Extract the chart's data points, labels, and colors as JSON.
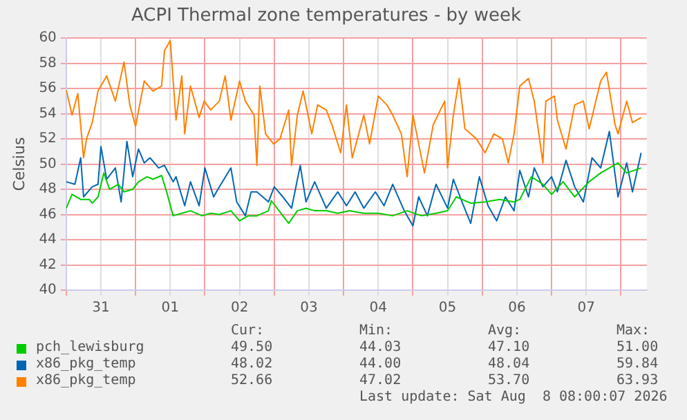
{
  "chart_data": {
    "type": "line",
    "title": "ACPI Thermal zone temperatures - by week",
    "ylabel": "Celsius",
    "xlim": [
      "2026-07-31T00:00",
      "2026-08-08T09:00"
    ],
    "xticks": [
      {
        "value": "2026-07-31T00:00",
        "label": null
      },
      {
        "value": "2026-07-31T12:00",
        "label": "31"
      },
      {
        "value": "2026-08-01T00:00",
        "label": null
      },
      {
        "value": "2026-08-01T12:00",
        "label": "01"
      },
      {
        "value": "2026-08-02T00:00",
        "label": null
      },
      {
        "value": "2026-08-02T12:00",
        "label": "02"
      },
      {
        "value": "2026-08-03T00:00",
        "label": null
      },
      {
        "value": "2026-08-03T12:00",
        "label": "03"
      },
      {
        "value": "2026-08-04T00:00",
        "label": null
      },
      {
        "value": "2026-08-04T12:00",
        "label": "04"
      },
      {
        "value": "2026-08-05T00:00",
        "label": null
      },
      {
        "value": "2026-08-05T12:00",
        "label": "05"
      },
      {
        "value": "2026-08-06T00:00",
        "label": null
      },
      {
        "value": "2026-08-06T12:00",
        "label": "06"
      },
      {
        "value": "2026-08-07T00:00",
        "label": null
      },
      {
        "value": "2026-08-07T12:00",
        "label": "07"
      },
      {
        "value": "2026-08-08T00:00",
        "label": null
      }
    ],
    "ylim": [
      40,
      60
    ],
    "yticks": [
      40,
      42,
      44,
      46,
      48,
      50,
      52,
      54,
      56,
      58,
      60
    ],
    "grid": true,
    "legend": "bottom",
    "marker": "none",
    "line_style": "solid",
    "series": [
      {
        "name": "pch_lewisburg",
        "color": "#00cc00",
        "x": [
          "2026-07-31T00:00",
          "2026-07-31T02:00",
          "2026-07-31T05:00",
          "2026-07-31T08:00",
          "2026-07-31T09:00",
          "2026-07-31T11:00",
          "2026-07-31T13:00",
          "2026-07-31T15:00",
          "2026-07-31T18:00",
          "2026-07-31T20:00",
          "2026-07-31T23:00",
          "2026-08-01T01:00",
          "2026-08-01T04:00",
          "2026-08-01T06:00",
          "2026-08-01T09:00",
          "2026-08-01T11:00",
          "2026-08-01T13:00",
          "2026-08-01T16:00",
          "2026-08-01T19:00",
          "2026-08-01T23:00",
          "2026-08-02T02:00",
          "2026-08-02T05:00",
          "2026-08-02T09:00",
          "2026-08-02T12:00",
          "2026-08-02T15:00",
          "2026-08-02T18:00",
          "2026-08-02T22:00",
          "2026-08-02T23:00",
          "2026-08-03T03:00",
          "2026-08-03T05:00",
          "2026-08-03T08:00",
          "2026-08-03T11:00",
          "2026-08-03T14:00",
          "2026-08-03T18:00",
          "2026-08-03T22:00",
          "2026-08-04T02:00",
          "2026-08-04T07:00",
          "2026-08-04T12:00",
          "2026-08-04T17:00",
          "2026-08-04T22:00",
          "2026-08-05T03:00",
          "2026-08-05T08:00",
          "2026-08-05T12:00",
          "2026-08-05T15:00",
          "2026-08-05T20:00",
          "2026-08-06T01:00",
          "2026-08-06T06:00",
          "2026-08-06T11:00",
          "2026-08-06T13:00",
          "2026-08-06T17:00",
          "2026-08-06T21:00",
          "2026-08-07T00:00",
          "2026-08-07T04:00",
          "2026-08-07T08:00",
          "2026-08-07T13:00",
          "2026-08-07T17:00",
          "2026-08-07T20:00",
          "2026-08-07T23:00",
          "2026-08-08T02:00",
          "2026-08-08T07:00"
        ],
        "values": [
          46.5,
          47.6,
          47.2,
          47.2,
          46.9,
          47.4,
          49.3,
          48.0,
          48.4,
          47.8,
          48.0,
          48.6,
          49.0,
          48.8,
          49.1,
          47.6,
          45.9,
          46.1,
          46.3,
          45.9,
          46.1,
          46.0,
          46.3,
          45.5,
          45.9,
          45.9,
          46.3,
          47.1,
          45.9,
          45.3,
          46.3,
          46.5,
          46.3,
          46.3,
          46.1,
          46.3,
          46.1,
          46.1,
          45.9,
          46.3,
          45.9,
          46.1,
          46.3,
          47.4,
          46.9,
          47.0,
          47.2,
          47.0,
          47.2,
          49.0,
          48.4,
          47.6,
          48.6,
          47.4,
          48.6,
          49.3,
          49.7,
          50.1,
          49.3,
          49.7
        ]
      },
      {
        "name": "x86_pkg_temp",
        "color": "#0066b3",
        "x": [
          "2026-07-31T00:00",
          "2026-07-31T03:00",
          "2026-07-31T05:00",
          "2026-07-31T06:00",
          "2026-07-31T09:00",
          "2026-07-31T11:00",
          "2026-07-31T12:00",
          "2026-07-31T14:00",
          "2026-07-31T17:00",
          "2026-07-31T19:00",
          "2026-07-31T21:00",
          "2026-07-31T23:00",
          "2026-08-01T01:00",
          "2026-08-01T03:00",
          "2026-08-01T05:00",
          "2026-08-01T08:00",
          "2026-08-01T10:00",
          "2026-08-01T13:00",
          "2026-08-01T14:00",
          "2026-08-01T17:00",
          "2026-08-01T19:00",
          "2026-08-01T22:00",
          "2026-08-02T00:00",
          "2026-08-02T03:00",
          "2026-08-02T05:00",
          "2026-08-02T09:00",
          "2026-08-02T11:00",
          "2026-08-02T14:00",
          "2026-08-02T16:00",
          "2026-08-02T18:00",
          "2026-08-02T22:00",
          "2026-08-03T00:00",
          "2026-08-03T03:00",
          "2026-08-03T06:00",
          "2026-08-03T09:00",
          "2026-08-03T11:00",
          "2026-08-03T14:00",
          "2026-08-03T18:00",
          "2026-08-03T22:00",
          "2026-08-04T01:00",
          "2026-08-04T04:00",
          "2026-08-04T07:00",
          "2026-08-04T11:00",
          "2026-08-04T14:00",
          "2026-08-04T17:00",
          "2026-08-04T21:00",
          "2026-08-05T00:00",
          "2026-08-05T02:00",
          "2026-08-05T05:00",
          "2026-08-05T08:00",
          "2026-08-05T12:00",
          "2026-08-05T14:00",
          "2026-08-05T17:00",
          "2026-08-05T20:00",
          "2026-08-05T23:00",
          "2026-08-06T02:00",
          "2026-08-06T05:00",
          "2026-08-06T08:00",
          "2026-08-06T11:00",
          "2026-08-06T13:00",
          "2026-08-06T16:00",
          "2026-08-06T18:00",
          "2026-08-06T21:00",
          "2026-08-07T00:00",
          "2026-08-07T02:00",
          "2026-08-07T05:00",
          "2026-08-07T08:00",
          "2026-08-07T11:00",
          "2026-08-07T14:00",
          "2026-08-07T17:00",
          "2026-08-07T20:00",
          "2026-08-07T23:00",
          "2026-08-08T02:00",
          "2026-08-08T04:00",
          "2026-08-08T07:00"
        ],
        "values": [
          48.6,
          48.4,
          50.5,
          47.4,
          48.2,
          48.4,
          51.4,
          48.8,
          49.7,
          47.0,
          51.8,
          49.0,
          51.2,
          50.1,
          50.5,
          49.7,
          49.9,
          48.6,
          49.0,
          46.7,
          48.6,
          46.7,
          49.7,
          47.4,
          48.2,
          49.7,
          47.0,
          45.9,
          47.8,
          47.8,
          47.0,
          48.2,
          47.4,
          46.5,
          49.9,
          47.0,
          48.6,
          46.5,
          47.8,
          46.7,
          47.8,
          46.5,
          47.8,
          46.7,
          48.4,
          46.3,
          45.1,
          47.4,
          45.9,
          48.4,
          46.5,
          48.8,
          47.0,
          45.3,
          49.0,
          46.7,
          45.5,
          47.4,
          46.3,
          49.5,
          47.4,
          49.7,
          48.2,
          49.0,
          47.8,
          50.3,
          48.2,
          47.0,
          50.5,
          49.7,
          52.6,
          47.4,
          50.1,
          47.8,
          50.9
        ]
      },
      {
        "name": "x86_pkg_temp",
        "color": "#ff8000",
        "x": [
          "2026-07-31T00:00",
          "2026-07-31T02:00",
          "2026-07-31T04:00",
          "2026-07-31T06:00",
          "2026-07-31T07:00",
          "2026-07-31T09:00",
          "2026-07-31T11:00",
          "2026-07-31T14:00",
          "2026-07-31T17:00",
          "2026-07-31T20:00",
          "2026-07-31T22:00",
          "2026-08-01T00:00",
          "2026-08-01T03:00",
          "2026-08-01T06:00",
          "2026-08-01T09:00",
          "2026-08-01T10:00",
          "2026-08-01T12:00",
          "2026-08-01T14:00",
          "2026-08-01T16:00",
          "2026-08-01T17:00",
          "2026-08-01T19:00",
          "2026-08-01T22:00",
          "2026-08-01T23:45",
          "2026-08-02T02:00",
          "2026-08-02T05:00",
          "2026-08-02T07:00",
          "2026-08-02T09:00",
          "2026-08-02T12:00",
          "2026-08-02T14:00",
          "2026-08-02T17:00",
          "2026-08-02T18:00",
          "2026-08-02T19:00",
          "2026-08-02T21:00",
          "2026-08-02T23:45",
          "2026-08-03T02:00",
          "2026-08-03T05:00",
          "2026-08-03T06:00",
          "2026-08-03T08:00",
          "2026-08-03T10:00",
          "2026-08-03T13:00",
          "2026-08-03T15:00",
          "2026-08-03T18:00",
          "2026-08-03T20:00",
          "2026-08-03T23:00",
          "2026-08-04T01:00",
          "2026-08-04T03:00",
          "2026-08-04T07:00",
          "2026-08-04T09:00",
          "2026-08-04T12:00",
          "2026-08-04T15:00",
          "2026-08-04T17:00",
          "2026-08-04T20:00",
          "2026-08-04T22:00",
          "2026-08-05T00:00",
          "2026-08-05T02:00",
          "2026-08-05T04:00",
          "2026-08-05T07:00",
          "2026-08-05T11:00",
          "2026-08-05T12:00",
          "2026-08-05T14:00",
          "2026-08-05T16:00",
          "2026-08-05T18:00",
          "2026-08-05T22:00",
          "2026-08-06T01:00",
          "2026-08-06T04:00",
          "2026-08-06T07:00",
          "2026-08-06T09:00",
          "2026-08-06T11:00",
          "2026-08-06T13:00",
          "2026-08-06T16:00",
          "2026-08-06T18:00",
          "2026-08-06T21:00",
          "2026-08-06T22:00",
          "2026-08-07T01:00",
          "2026-08-07T02:00",
          "2026-08-07T05:00",
          "2026-08-07T08:00",
          "2026-08-07T11:00",
          "2026-08-07T13:00",
          "2026-08-07T17:00",
          "2026-08-07T19:00",
          "2026-08-07T22:00",
          "2026-08-07T23:00",
          "2026-08-08T02:00",
          "2026-08-08T04:00",
          "2026-08-08T07:00"
        ],
        "values": [
          55.9,
          53.9,
          55.6,
          50.5,
          52.0,
          53.3,
          55.8,
          57.0,
          55.0,
          58.1,
          54.7,
          53.0,
          56.6,
          55.8,
          56.2,
          59.0,
          59.8,
          53.5,
          57.0,
          52.4,
          56.2,
          53.7,
          55.0,
          54.3,
          55.0,
          57.0,
          53.5,
          56.6,
          55.0,
          53.9,
          49.9,
          56.2,
          52.4,
          51.6,
          52.0,
          54.3,
          49.9,
          53.9,
          55.8,
          52.4,
          54.7,
          54.3,
          53.1,
          50.9,
          54.7,
          50.5,
          53.9,
          51.6,
          55.4,
          54.7,
          53.9,
          52.4,
          49.0,
          53.9,
          51.6,
          49.3,
          53.1,
          55.0,
          49.7,
          53.9,
          56.8,
          52.8,
          52.0,
          50.9,
          52.4,
          52.0,
          50.1,
          52.4,
          56.2,
          56.8,
          55.0,
          50.1,
          55.0,
          55.4,
          53.5,
          51.2,
          54.7,
          55.0,
          52.8,
          56.6,
          57.3,
          53.1,
          52.4,
          55.0,
          53.3,
          53.7
        ]
      }
    ],
    "annotations": [
      "Cur:",
      "Min:",
      "Avg:",
      "Max:",
      "49.50",
      "44.03",
      "47.10",
      "51.00",
      "48.02",
      "44.00",
      "48.04",
      "59.84",
      "52.66",
      "47.02",
      "53.70",
      "63.93",
      "Last update: Sat Aug  8 08:00:07 2026"
    ]
  }
}
